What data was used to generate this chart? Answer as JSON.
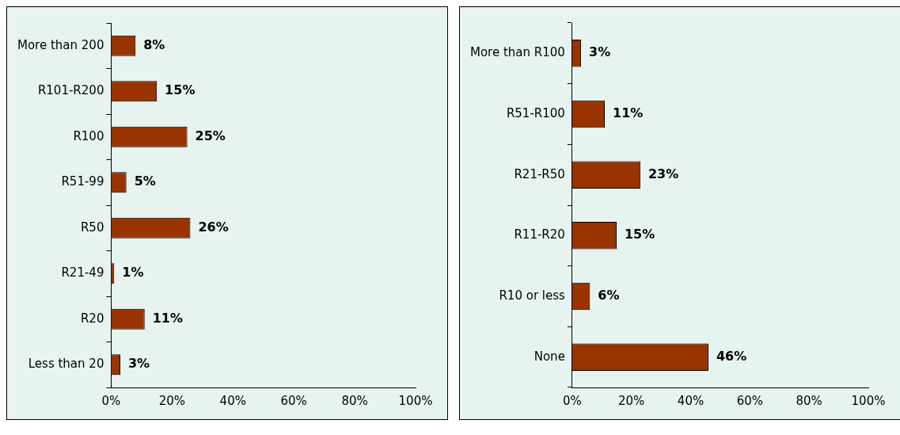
{
  "chart_data": [
    {
      "type": "bar",
      "orientation": "horizontal",
      "categories": [
        "More than 200",
        "R101-R200",
        "R100",
        "R51-99",
        "R50",
        "R21-49",
        "R20",
        "Less than 20"
      ],
      "values": [
        8,
        15,
        25,
        5,
        26,
        1,
        11,
        3
      ],
      "color": "#993300",
      "value_labels": [
        "8%",
        "15%",
        "25%",
        "5%",
        "26%",
        "1%",
        "11%",
        "3%"
      ],
      "xlim": [
        0,
        100
      ],
      "xticks": [
        {
          "value": 0,
          "label": "0%"
        },
        {
          "value": 20,
          "label": "20%"
        },
        {
          "value": 40,
          "label": "40%"
        },
        {
          "value": 60,
          "label": "60%"
        },
        {
          "value": 80,
          "label": "80%"
        },
        {
          "value": 100,
          "label": "100%"
        }
      ],
      "grid": false,
      "legend": false
    },
    {
      "type": "bar",
      "orientation": "horizontal",
      "categories": [
        "More than R100",
        "R51-R100",
        "R21-R50",
        "R11-R20",
        "R10 or less",
        "None"
      ],
      "values": [
        3,
        11,
        23,
        15,
        6,
        46
      ],
      "color": "#993300",
      "value_labels": [
        "3%",
        "11%",
        "23%",
        "15%",
        "6%",
        "46%"
      ],
      "xlim": [
        0,
        100
      ],
      "xticks": [
        {
          "value": 0,
          "label": "0%"
        },
        {
          "value": 20,
          "label": "20%"
        },
        {
          "value": 40,
          "label": "40%"
        },
        {
          "value": 60,
          "label": "60%"
        },
        {
          "value": 80,
          "label": "80%"
        },
        {
          "value": 100,
          "label": "100%"
        }
      ],
      "grid": false,
      "legend": false
    }
  ]
}
